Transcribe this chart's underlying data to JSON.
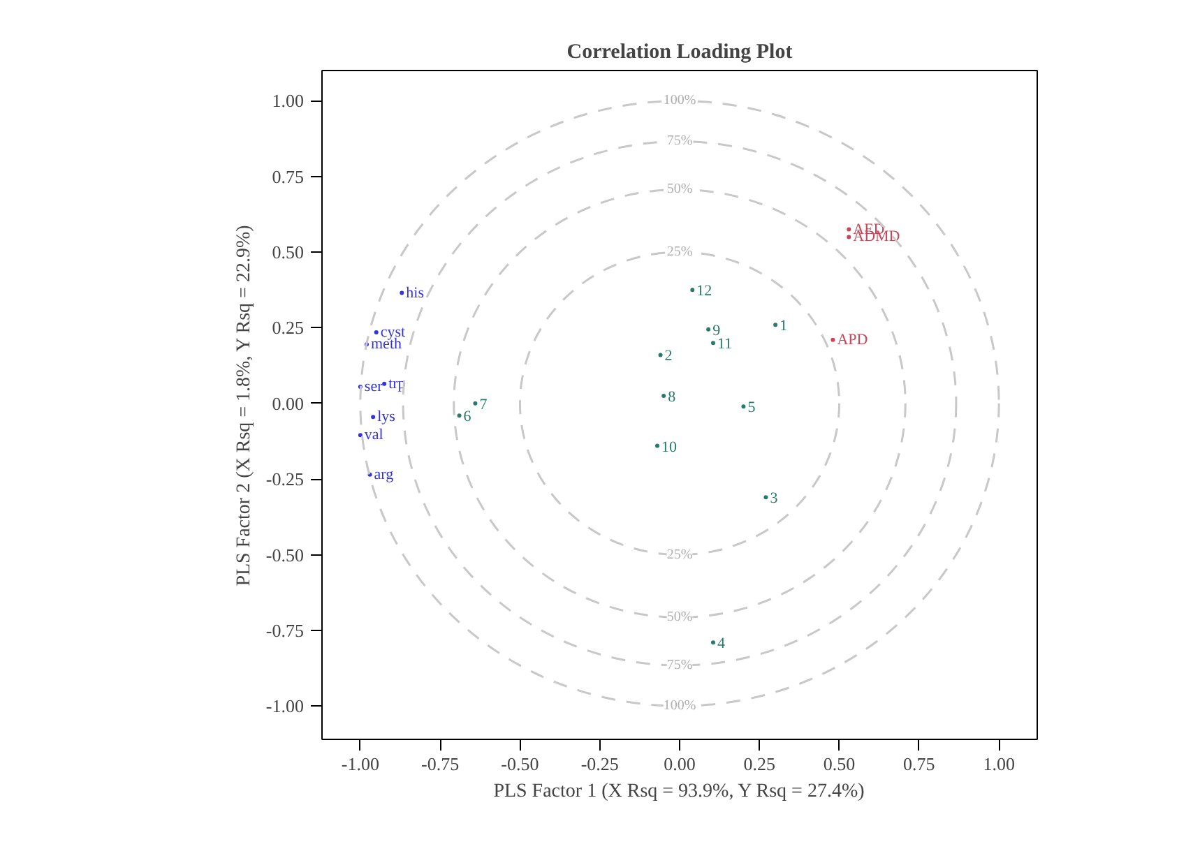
{
  "chart_data": {
    "type": "scatter",
    "title": "Correlation Loading Plot",
    "xlabel": "PLS Factor 1 (X Rsq = 93.9%, Y Rsq = 27.4%)",
    "ylabel": "PLS Factor 2 (X Rsq = 1.8%, Y Rsq = 22.9%)",
    "xlim": [
      -1.12,
      1.12
    ],
    "ylim": [
      -1.11,
      1.1
    ],
    "xticks": [
      {
        "value": -1,
        "label": "-1.00"
      },
      {
        "value": -0.75,
        "label": "-0.75"
      },
      {
        "value": -0.5,
        "label": "-0.50"
      },
      {
        "value": -0.25,
        "label": "-0.25"
      },
      {
        "value": 0,
        "label": "0.00"
      },
      {
        "value": 0.25,
        "label": "0.25"
      },
      {
        "value": 0.5,
        "label": "0.50"
      },
      {
        "value": 0.75,
        "label": "0.75"
      },
      {
        "value": 1,
        "label": "1.00"
      }
    ],
    "yticks": [
      {
        "value": -1,
        "label": "-1.00"
      },
      {
        "value": -0.75,
        "label": "-0.75"
      },
      {
        "value": -0.5,
        "label": "-0.50"
      },
      {
        "value": -0.25,
        "label": "-0.25"
      },
      {
        "value": 0,
        "label": "0.00"
      },
      {
        "value": 0.25,
        "label": "0.25"
      },
      {
        "value": 0.5,
        "label": "0.50"
      },
      {
        "value": 0.75,
        "label": "0.75"
      },
      {
        "value": 1,
        "label": "1.00"
      }
    ],
    "grid": false,
    "legend": false,
    "series": [
      {
        "name": "12",
        "color": "#2a7a6a",
        "x": [
          0.04
        ],
        "values": [
          0.375
        ]
      },
      {
        "name": "1",
        "color": "#2a7a6a",
        "x": [
          0.3
        ],
        "values": [
          0.26
        ]
      },
      {
        "name": "9",
        "color": "#2a7a6a",
        "x": [
          0.09
        ],
        "values": [
          0.245
        ]
      },
      {
        "name": "11",
        "color": "#2a7a6a",
        "x": [
          0.105
        ],
        "values": [
          0.2
        ]
      },
      {
        "name": "2",
        "color": "#2a7a6a",
        "x": [
          -0.06
        ],
        "values": [
          0.16
        ]
      },
      {
        "name": "8",
        "color": "#2a7a6a",
        "x": [
          -0.05
        ],
        "values": [
          0.025
        ]
      },
      {
        "name": "5",
        "color": "#2a7a6a",
        "x": [
          0.2
        ],
        "values": [
          -0.01
        ]
      },
      {
        "name": "10",
        "color": "#2a7a6a",
        "x": [
          -0.07
        ],
        "values": [
          -0.14
        ]
      },
      {
        "name": "3",
        "color": "#2a7a6a",
        "x": [
          0.27
        ],
        "values": [
          -0.31
        ]
      },
      {
        "name": "4",
        "color": "#2a7a6a",
        "x": [
          0.105
        ],
        "values": [
          -0.79
        ]
      },
      {
        "name": "7",
        "color": "#2a7a6a",
        "x": [
          -0.64
        ],
        "values": [
          0.0
        ]
      },
      {
        "name": "6",
        "color": "#2a7a6a",
        "x": [
          -0.69
        ],
        "values": [
          -0.04
        ]
      },
      {
        "name": "APD",
        "color": "#cc4455",
        "x": [
          0.48
        ],
        "values": [
          0.21
        ]
      },
      {
        "name": "AED",
        "color": "#cc4455",
        "x": [
          0.53
        ],
        "values": [
          0.575
        ]
      },
      {
        "name": "ADMD",
        "color": "#cc4455",
        "x": [
          0.53
        ],
        "values": [
          0.55
        ]
      },
      {
        "name": "his",
        "color": "#3333dd",
        "x": [
          -0.87
        ],
        "values": [
          0.365
        ]
      },
      {
        "name": "cyst",
        "color": "#3333dd",
        "x": [
          -0.95
        ],
        "values": [
          0.235
        ]
      },
      {
        "name": "meth",
        "color": "#3333dd",
        "x": [
          -0.98
        ],
        "values": [
          0.195
        ]
      },
      {
        "name": "trp",
        "color": "#3333dd",
        "x": [
          -0.925
        ],
        "values": [
          0.065
        ]
      },
      {
        "name": "ser",
        "color": "#3333dd",
        "x": [
          -1.0
        ],
        "values": [
          0.055
        ]
      },
      {
        "name": "lys",
        "color": "#3333dd",
        "x": [
          -0.96
        ],
        "values": [
          -0.045
        ]
      },
      {
        "name": "val",
        "color": "#3333dd",
        "x": [
          -1.0
        ],
        "values": [
          -0.105
        ]
      },
      {
        "name": "arg",
        "color": "#3333dd",
        "x": [
          -0.97
        ],
        "values": [
          -0.235
        ]
      }
    ],
    "annotations": [
      "100%",
      "75%",
      "50%",
      "25%",
      "25%",
      "50%",
      "75%",
      "100%"
    ]
  }
}
